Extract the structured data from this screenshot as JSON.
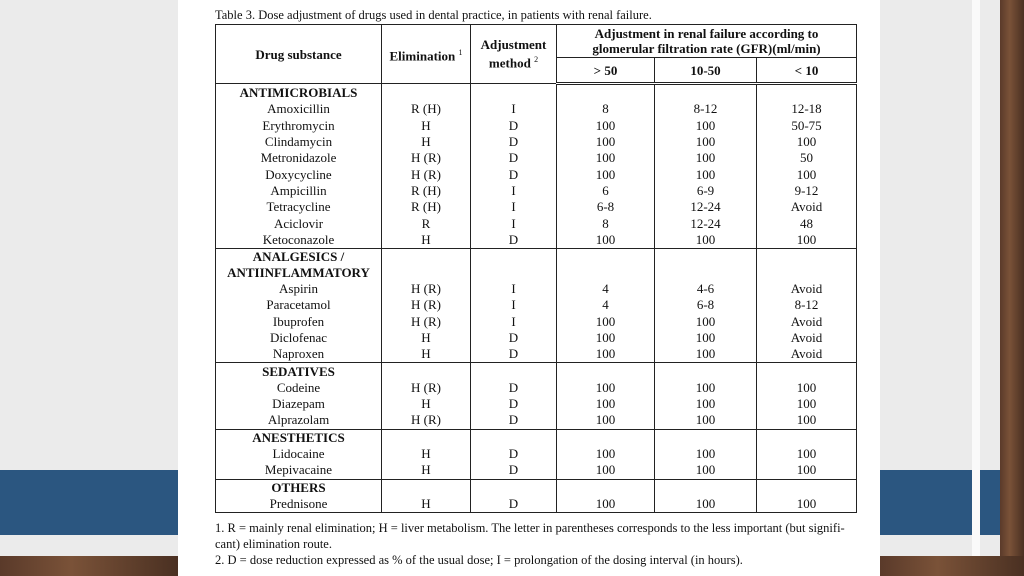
{
  "title": "Table 3. Dose adjustment of drugs used in dental practice, in patients with renal failure.",
  "header": {
    "drug": "Drug substance",
    "elimination": "Elimination",
    "elimination_note": "1",
    "method": "Adjustment method",
    "method_note": "2",
    "gfr": "Adjustment in renal failure according to glomerular filtration rate (GFR)(ml/min)",
    "gfr_columns": [
      "> 50",
      "10-50",
      "< 10"
    ]
  },
  "groups": [
    {
      "label_lines": [
        "ANTIMICROBIALS"
      ],
      "rows": [
        [
          "Amoxicillin",
          "R (H)",
          "I",
          "8",
          "8-12",
          "12-18"
        ],
        [
          "Erythromycin",
          "H",
          "D",
          "100",
          "100",
          "50-75"
        ],
        [
          "Clindamycin",
          "H",
          "D",
          "100",
          "100",
          "100"
        ],
        [
          "Metronidazole",
          "H (R)",
          "D",
          "100",
          "100",
          "50"
        ],
        [
          "Doxycycline",
          "H (R)",
          "D",
          "100",
          "100",
          "100"
        ],
        [
          "Ampicillin",
          "R (H)",
          "I",
          "6",
          "6-9",
          "9-12"
        ],
        [
          "Tetracycline",
          "R (H)",
          "I",
          "6-8",
          "12-24",
          "Avoid"
        ],
        [
          "Aciclovir",
          "R",
          "I",
          "8",
          "12-24",
          "48"
        ],
        [
          "Ketoconazole",
          "H",
          "D",
          "100",
          "100",
          "100"
        ]
      ]
    },
    {
      "label_lines": [
        "ANALGESICS /",
        "ANTIINFLAMMATORY"
      ],
      "rows": [
        [
          "Aspirin",
          "H (R)",
          "I",
          "4",
          "4-6",
          "Avoid"
        ],
        [
          "Paracetamol",
          "H (R)",
          "I",
          "4",
          "6-8",
          "8-12"
        ],
        [
          "Ibuprofen",
          "H (R)",
          "I",
          "100",
          "100",
          "Avoid"
        ],
        [
          "Diclofenac",
          "H",
          "D",
          "100",
          "100",
          "Avoid"
        ],
        [
          "Naproxen",
          "H",
          "D",
          "100",
          "100",
          "Avoid"
        ]
      ]
    },
    {
      "label_lines": [
        "SEDATIVES"
      ],
      "rows": [
        [
          "Codeine",
          "H (R)",
          "D",
          "100",
          "100",
          "100"
        ],
        [
          "Diazepam",
          "H",
          "D",
          "100",
          "100",
          "100"
        ],
        [
          "Alprazolam",
          "H (R)",
          "D",
          "100",
          "100",
          "100"
        ]
      ]
    },
    {
      "label_lines": [
        "ANESTHETICS"
      ],
      "rows": [
        [
          "Lidocaine",
          "H",
          "D",
          "100",
          "100",
          "100"
        ],
        [
          "Mepivacaine",
          "H",
          "D",
          "100",
          "100",
          "100"
        ]
      ]
    },
    {
      "label_lines": [
        "OTHERS"
      ],
      "rows": [
        [
          "Prednisone",
          "H",
          "D",
          "100",
          "100",
          "100"
        ]
      ]
    }
  ],
  "footnotes": [
    "1. R = mainly renal elimination; H = liver metabolism. The letter in parentheses corresponds to the less important (but signifi-",
    "cant) elimination route.",
    "2. D = dose reduction expressed as % of the usual dose; I = prolongation of the dosing interval (in hours)."
  ]
}
